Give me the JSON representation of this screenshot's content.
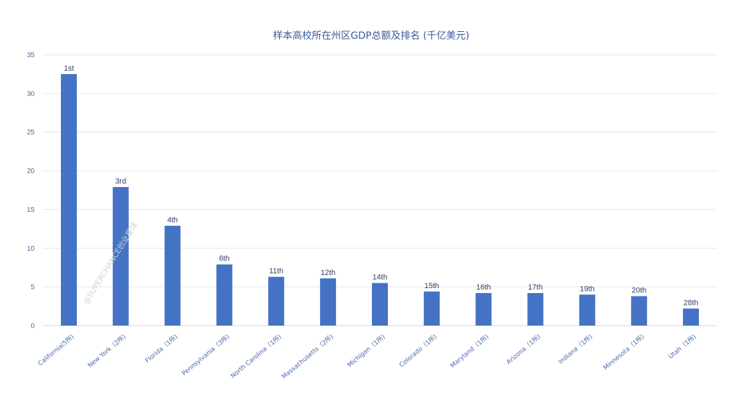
{
  "watermark": "@SUPERCHANCE创业星球",
  "chart_data": {
    "type": "bar",
    "title": "样本高校所在州区GDP总额及排名 (千亿美元)",
    "xlabel": "",
    "ylabel": "",
    "ylim": [
      0,
      35
    ],
    "yticks": [
      "0",
      "5",
      "10",
      "15",
      "20",
      "25",
      "30",
      "35"
    ],
    "grid": true,
    "legend": "none",
    "bar_color": "#4472c4",
    "categories": [
      "California(5所)",
      "New York（2所)",
      "Florida（1所)",
      "Pennsylvania（3所)",
      "North Carolina（1所)",
      "Massachusetts（2所)",
      "Michigan（1所)",
      "Colorado（1所)",
      "Maryland（1所)",
      "Arizona（1所)",
      "Indiana（1所)",
      "Minnesota（1所)",
      "Utah（1所)"
    ],
    "values": [
      32.5,
      17.9,
      12.9,
      7.9,
      6.3,
      6.1,
      5.5,
      4.4,
      4.2,
      4.2,
      4.0,
      3.8,
      2.2
    ],
    "data_labels": [
      "1st",
      "3rd",
      "4th",
      "6th",
      "11th",
      "12th",
      "14th",
      "15th",
      "16th",
      "17th",
      "19th",
      "20th",
      "28th"
    ]
  }
}
